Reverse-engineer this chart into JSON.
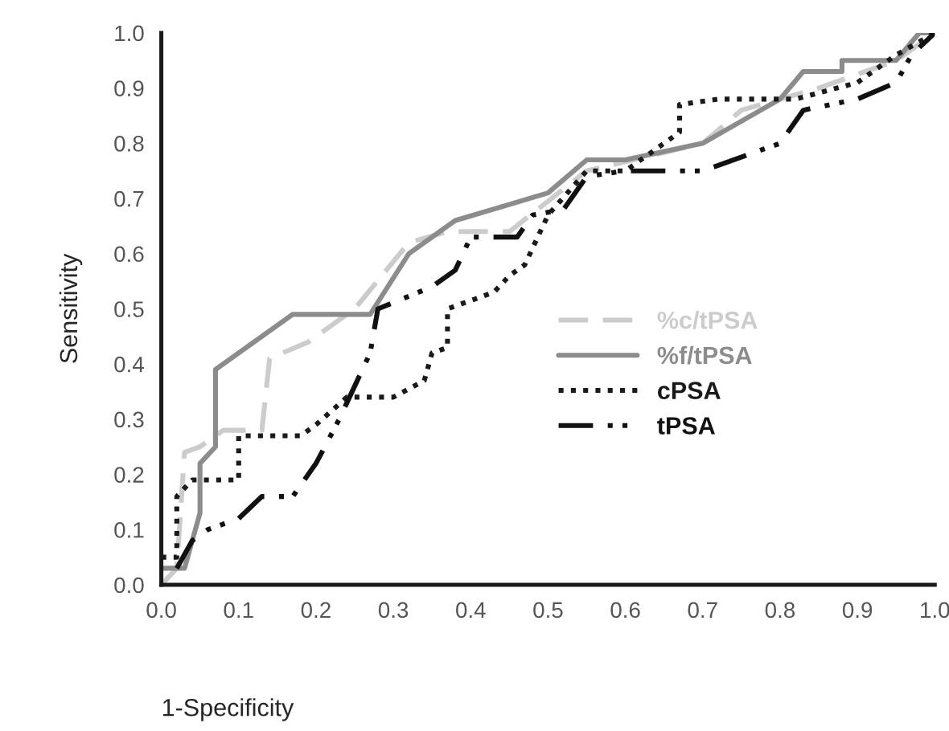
{
  "chart_data": {
    "type": "line",
    "xlabel": "1-Specificity",
    "ylabel": "Sensitivity",
    "xlim": [
      0,
      1.0
    ],
    "ylim": [
      0,
      1.0
    ],
    "xticks": [
      {
        "value": 0,
        "label": "0.0"
      },
      0.1,
      0.2,
      0.3,
      0.4,
      0.5,
      0.6,
      0.7,
      0.8,
      0.9,
      {
        "value": 1.0,
        "label": "1.0"
      }
    ],
    "yticks": [
      {
        "value": 0,
        "label": "0.0"
      },
      0.1,
      0.2,
      0.3,
      0.4,
      0.5,
      0.6,
      0.7,
      0.8,
      0.9,
      {
        "value": 1.0,
        "label": "1.0"
      }
    ],
    "grid": false,
    "legend": "right",
    "marker": "none",
    "series": [
      {
        "name": "%c/tPSA",
        "color": "#cccccc",
        "line_style": "dashed",
        "x": [
          0,
          0.02,
          0.03,
          0.05,
          0.08,
          0.13,
          0.14,
          0.19,
          0.25,
          0.32,
          0.37,
          0.45,
          0.55,
          0.7,
          0.75,
          0.85,
          0.95,
          1.0
        ],
        "values": [
          0,
          0.03,
          0.24,
          0.25,
          0.28,
          0.28,
          0.41,
          0.44,
          0.5,
          0.62,
          0.64,
          0.64,
          0.75,
          0.8,
          0.86,
          0.9,
          0.95,
          1.0
        ]
      },
      {
        "name": "%f/tPSA",
        "color": "#8c8c8c",
        "line_style": "solid",
        "x": [
          0,
          0.03,
          0.05,
          0.05,
          0.07,
          0.07,
          0.17,
          0.27,
          0.32,
          0.38,
          0.5,
          0.55,
          0.6,
          0.7,
          0.8,
          0.83,
          0.88,
          0.88,
          0.95,
          0.98,
          1.0
        ],
        "values": [
          0.03,
          0.03,
          0.13,
          0.22,
          0.25,
          0.39,
          0.49,
          0.49,
          0.6,
          0.66,
          0.71,
          0.77,
          0.77,
          0.8,
          0.88,
          0.93,
          0.93,
          0.95,
          0.95,
          1.0,
          1.0
        ]
      },
      {
        "name": "cPSA",
        "color": "#1a1a1a",
        "line_style": "dotted",
        "x": [
          0,
          0.02,
          0.02,
          0.04,
          0.1,
          0.1,
          0.18,
          0.2,
          0.24,
          0.3,
          0.34,
          0.35,
          0.37,
          0.37,
          0.43,
          0.45,
          0.47,
          0.5,
          0.55,
          0.6,
          0.67,
          0.67,
          0.72,
          0.82,
          0.9,
          0.95,
          1.0
        ],
        "values": [
          0.05,
          0.05,
          0.16,
          0.19,
          0.19,
          0.27,
          0.27,
          0.29,
          0.34,
          0.34,
          0.37,
          0.42,
          0.43,
          0.5,
          0.53,
          0.56,
          0.58,
          0.67,
          0.75,
          0.75,
          0.82,
          0.87,
          0.88,
          0.88,
          0.91,
          0.96,
          1.0
        ]
      },
      {
        "name": "tPSA",
        "color": "#111111",
        "line_style": "dashdot",
        "x": [
          0.02,
          0.04,
          0.06,
          0.1,
          0.13,
          0.17,
          0.2,
          0.23,
          0.27,
          0.28,
          0.35,
          0.38,
          0.4,
          0.46,
          0.48,
          0.52,
          0.55,
          0.6,
          0.7,
          0.8,
          0.83,
          0.9,
          0.95,
          0.97,
          1.0
        ],
        "values": [
          0.03,
          0.08,
          0.1,
          0.12,
          0.16,
          0.16,
          0.22,
          0.3,
          0.42,
          0.5,
          0.54,
          0.57,
          0.63,
          0.63,
          0.67,
          0.68,
          0.74,
          0.75,
          0.75,
          0.8,
          0.86,
          0.88,
          0.91,
          0.96,
          1.0
        ]
      }
    ]
  }
}
